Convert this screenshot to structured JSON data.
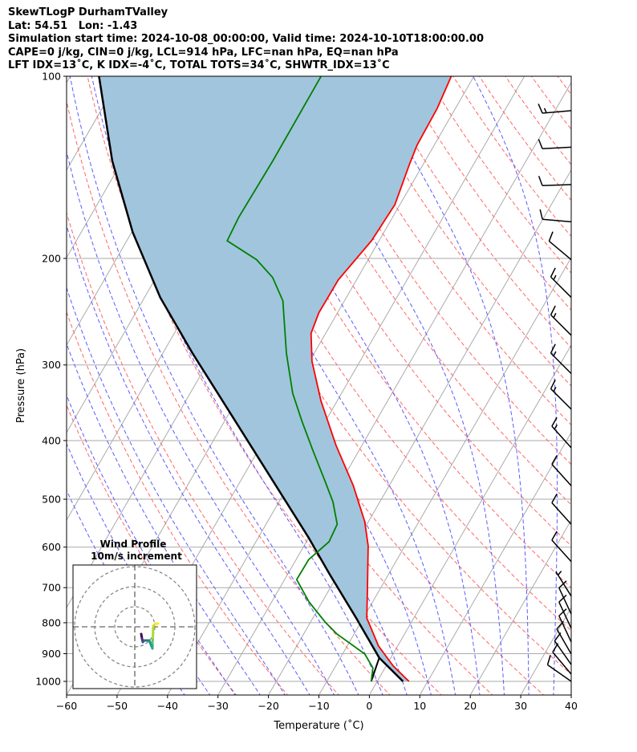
{
  "title_lines": [
    "SkewTLogP DurhamTValley",
    "Lat: 54.51   Lon: -1.43",
    "Simulation start time: 2024-10-08_00:00:00, Valid time: 2024-10-10T18:00:00.00",
    "CAPE=0 j/kg, CIN=0 j/kg, LCL=914 hPa, LFC=nan hPa, EQ=nan hPa",
    "LFT IDX=13˚C, K IDX=-4˚C, TOTAL TOTS=34˚C, SHWTR_IDX=13˚C"
  ],
  "chart_data": {
    "type": "line",
    "subtype": "skewT-logP",
    "xlabel": "Temperature (˚C)",
    "ylabel": "Pressure (hPa)",
    "xlim": [
      -60,
      40
    ],
    "ylim": [
      1050,
      100
    ],
    "xticks": [
      -60,
      -50,
      -40,
      -30,
      -20,
      -10,
      0,
      10,
      20,
      30,
      40
    ],
    "yticks": [
      100,
      200,
      300,
      400,
      500,
      600,
      700,
      800,
      900,
      1000
    ],
    "grid": true,
    "colors": {
      "temperature": "#ff0000",
      "dewpoint": "#008000",
      "parcel": "#000000",
      "shade": "#a1c5dd",
      "dry_adiabat": "#ff6666",
      "moist_adiabat": "#5b5bff",
      "isotherm": "#aaaaaa"
    },
    "temperature": [
      [
        1000,
        6.3
      ],
      [
        943,
        1.4
      ],
      [
        874,
        -3.8
      ],
      [
        786,
        -9.3
      ],
      [
        706,
        -12.4
      ],
      [
        597,
        -17.3
      ],
      [
        545,
        -20.7
      ],
      [
        475,
        -27.1
      ],
      [
        407,
        -35.2
      ],
      [
        344,
        -43.2
      ],
      [
        296,
        -49.5
      ],
      [
        266,
        -52.9
      ],
      [
        246,
        -53.7
      ],
      [
        217,
        -53.6
      ],
      [
        187,
        -51.5
      ],
      [
        163,
        -51.0
      ],
      [
        140,
        -52.7
      ],
      [
        130,
        -53.4
      ],
      [
        113,
        -53.6
      ],
      [
        100,
        -54.5
      ]
    ],
    "dewpoint": [
      [
        1000,
        -1.2
      ],
      [
        950,
        -2.4
      ],
      [
        901,
        -5.6
      ],
      [
        835,
        -13.4
      ],
      [
        798,
        -17.1
      ],
      [
        739,
        -22.6
      ],
      [
        679,
        -27.6
      ],
      [
        629,
        -27.5
      ],
      [
        588,
        -25.5
      ],
      [
        550,
        -25.9
      ],
      [
        505,
        -29.3
      ],
      [
        467,
        -33.2
      ],
      [
        414,
        -39.3
      ],
      [
        372,
        -44.6
      ],
      [
        334,
        -49.7
      ],
      [
        287,
        -55.5
      ],
      [
        235,
        -62.2
      ],
      [
        215,
        -66.9
      ],
      [
        201,
        -72.1
      ],
      [
        187,
        -80.1
      ],
      [
        171,
        -80.5
      ],
      [
        138,
        -80.2
      ],
      [
        100,
        -80.3
      ]
    ],
    "parcel": [
      [
        1000,
        5.1
      ],
      [
        914,
        -2.3
      ],
      [
        786,
        -11.4
      ],
      [
        664,
        -21.8
      ],
      [
        579,
        -30.0
      ],
      [
        467,
        -43.5
      ],
      [
        366,
        -58.8
      ],
      [
        287,
        -74.1
      ],
      [
        232,
        -86.9
      ],
      [
        181,
        -99.8
      ],
      [
        138,
        -112.0
      ],
      [
        100,
        -124.3
      ]
    ],
    "lcl_line": [
      [
        1000,
        -1.2
      ],
      [
        914,
        -2.3
      ]
    ],
    "dry_adiabats_theta_c": [
      -30,
      -20,
      -10,
      0,
      10,
      20,
      30,
      40,
      50,
      60,
      70,
      80,
      90,
      100,
      110,
      120,
      130,
      140,
      150,
      160,
      170,
      180,
      190,
      200
    ],
    "moist_adiabats_t0_c": [
      -40,
      -35,
      -30,
      -25,
      -20,
      -15,
      -10,
      -5,
      0,
      5,
      10,
      15,
      20,
      25,
      30,
      35,
      40,
      45
    ],
    "wind_barbs": [
      {
        "p": 114,
        "dir": 265,
        "kt": 15
      },
      {
        "p": 131,
        "dir": 267,
        "kt": 10
      },
      {
        "p": 151,
        "dir": 268,
        "kt": 10
      },
      {
        "p": 174,
        "dir": 275,
        "kt": 10
      },
      {
        "p": 201,
        "dir": 310,
        "kt": 10
      },
      {
        "p": 232,
        "dir": 315,
        "kt": 15
      },
      {
        "p": 268,
        "dir": 315,
        "kt": 15
      },
      {
        "p": 310,
        "dir": 315,
        "kt": 15
      },
      {
        "p": 355,
        "dir": 315,
        "kt": 15
      },
      {
        "p": 411,
        "dir": 318,
        "kt": 15
      },
      {
        "p": 475,
        "dir": 318,
        "kt": 10
      },
      {
        "p": 550,
        "dir": 318,
        "kt": 10
      },
      {
        "p": 634,
        "dir": 318,
        "kt": 10
      },
      {
        "p": 723,
        "dir": 328,
        "kt": 5
      },
      {
        "p": 774,
        "dir": 335,
        "kt": 10
      },
      {
        "p": 817,
        "dir": 335,
        "kt": 10
      },
      {
        "p": 861,
        "dir": 335,
        "kt": 10
      },
      {
        "p": 901,
        "dir": 330,
        "kt": 10
      },
      {
        "p": 938,
        "dir": 325,
        "kt": 10
      },
      {
        "p": 973,
        "dir": 320,
        "kt": 10
      },
      {
        "p": 1000,
        "dir": 305,
        "kt": 10
      }
    ],
    "hodograph": {
      "title": "Wind Profile",
      "subtitle": "10m/s increment",
      "rings_ms": [
        10,
        20,
        30
      ],
      "u": [
        3.2,
        3.6,
        4.0,
        4.8,
        7.2,
        8.8,
        8.8,
        9.0,
        9.2,
        10.4,
        11.6
      ],
      "v": [
        -3.6,
        -5.8,
        -7.6,
        -6.8,
        -6.8,
        -10.8,
        -8.0,
        -5.6,
        0.4,
        1.6,
        1.6
      ]
    }
  }
}
